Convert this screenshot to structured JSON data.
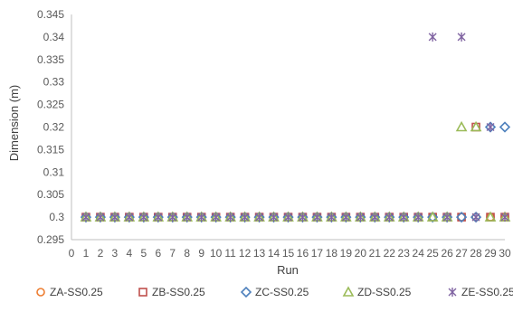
{
  "chart_data": {
    "type": "scatter",
    "title": "",
    "xlabel": "Run",
    "ylabel": "Dimension (m)",
    "xlim": [
      0,
      30
    ],
    "ylim": [
      0.295,
      0.345
    ],
    "x_ticks": [
      "0",
      "1",
      "2",
      "3",
      "4",
      "5",
      "6",
      "7",
      "8",
      "9",
      "10",
      "11",
      "12",
      "13",
      "14",
      "15",
      "16",
      "17",
      "18",
      "19",
      "20",
      "21",
      "22",
      "23",
      "24",
      "25",
      "26",
      "27",
      "28",
      "29",
      "30"
    ],
    "y_ticks": [
      "0.295",
      "0.3",
      "0.305",
      "0.31",
      "0.315",
      "0.32",
      "0.325",
      "0.33",
      "0.335",
      "0.34",
      "0.345"
    ],
    "grid": false,
    "legend_position": "bottom",
    "series": [
      {
        "name": "ZA-SS0.25",
        "marker": "circle",
        "color": "#ED7D31",
        "x": [
          1,
          2,
          3,
          4,
          5,
          6,
          7,
          8,
          9,
          10,
          11,
          12,
          13,
          14,
          15,
          16,
          17,
          18,
          19,
          20,
          21,
          22,
          23,
          24,
          25,
          26,
          27,
          28,
          29,
          30
        ],
        "y": [
          0.3,
          0.3,
          0.3,
          0.3,
          0.3,
          0.3,
          0.3,
          0.3,
          0.3,
          0.3,
          0.3,
          0.3,
          0.3,
          0.3,
          0.3,
          0.3,
          0.3,
          0.3,
          0.3,
          0.3,
          0.3,
          0.3,
          0.3,
          0.3,
          0.3,
          0.3,
          0.3,
          0.3,
          0.3,
          0.3
        ]
      },
      {
        "name": "ZB-SS0.25",
        "marker": "square",
        "color": "#C0504D",
        "x": [
          1,
          2,
          3,
          4,
          5,
          6,
          7,
          8,
          9,
          10,
          11,
          12,
          13,
          14,
          15,
          16,
          17,
          18,
          19,
          20,
          21,
          22,
          23,
          24,
          25,
          26,
          27,
          28,
          29,
          30
        ],
        "y": [
          0.3,
          0.3,
          0.3,
          0.3,
          0.3,
          0.3,
          0.3,
          0.3,
          0.3,
          0.3,
          0.3,
          0.3,
          0.3,
          0.3,
          0.3,
          0.3,
          0.3,
          0.3,
          0.3,
          0.3,
          0.3,
          0.3,
          0.3,
          0.3,
          0.3,
          0.3,
          0.3,
          0.32,
          0.3,
          0.3
        ]
      },
      {
        "name": "ZC-SS0.25",
        "marker": "diamond",
        "color": "#4F81BD",
        "x": [
          1,
          2,
          3,
          4,
          5,
          6,
          7,
          8,
          9,
          10,
          11,
          12,
          13,
          14,
          15,
          16,
          17,
          18,
          19,
          20,
          21,
          22,
          23,
          24,
          25,
          26,
          27,
          28,
          29,
          30
        ],
        "y": [
          0.3,
          0.3,
          0.3,
          0.3,
          0.3,
          0.3,
          0.3,
          0.3,
          0.3,
          0.3,
          0.3,
          0.3,
          0.3,
          0.3,
          0.3,
          0.3,
          0.3,
          0.3,
          0.3,
          0.3,
          0.3,
          0.3,
          0.3,
          0.3,
          0.3,
          0.3,
          0.3,
          0.3,
          0.32,
          0.32
        ]
      },
      {
        "name": "ZD-SS0.25",
        "marker": "triangle",
        "color": "#9BBB59",
        "x": [
          1,
          2,
          3,
          4,
          5,
          6,
          7,
          8,
          9,
          10,
          11,
          12,
          13,
          14,
          15,
          16,
          17,
          18,
          19,
          20,
          21,
          22,
          23,
          24,
          25,
          26,
          27,
          28,
          29,
          30
        ],
        "y": [
          0.3,
          0.3,
          0.3,
          0.3,
          0.3,
          0.3,
          0.3,
          0.3,
          0.3,
          0.3,
          0.3,
          0.3,
          0.3,
          0.3,
          0.3,
          0.3,
          0.3,
          0.3,
          0.3,
          0.3,
          0.3,
          0.3,
          0.3,
          0.3,
          0.3,
          0.3,
          0.32,
          0.32,
          0.3,
          0.3
        ]
      },
      {
        "name": "ZE-SS0.25",
        "marker": "star",
        "color": "#8064A2",
        "x": [
          1,
          2,
          3,
          4,
          5,
          6,
          7,
          8,
          9,
          10,
          11,
          12,
          13,
          14,
          15,
          16,
          17,
          18,
          19,
          20,
          21,
          22,
          23,
          24,
          25,
          26,
          27,
          28,
          29,
          30
        ],
        "y": [
          0.3,
          0.3,
          0.3,
          0.3,
          0.3,
          0.3,
          0.3,
          0.3,
          0.3,
          0.3,
          0.3,
          0.3,
          0.3,
          0.3,
          0.3,
          0.3,
          0.3,
          0.3,
          0.3,
          0.3,
          0.3,
          0.3,
          0.3,
          0.3,
          0.34,
          0.3,
          0.34,
          0.3,
          0.32,
          0.3
        ]
      }
    ]
  }
}
